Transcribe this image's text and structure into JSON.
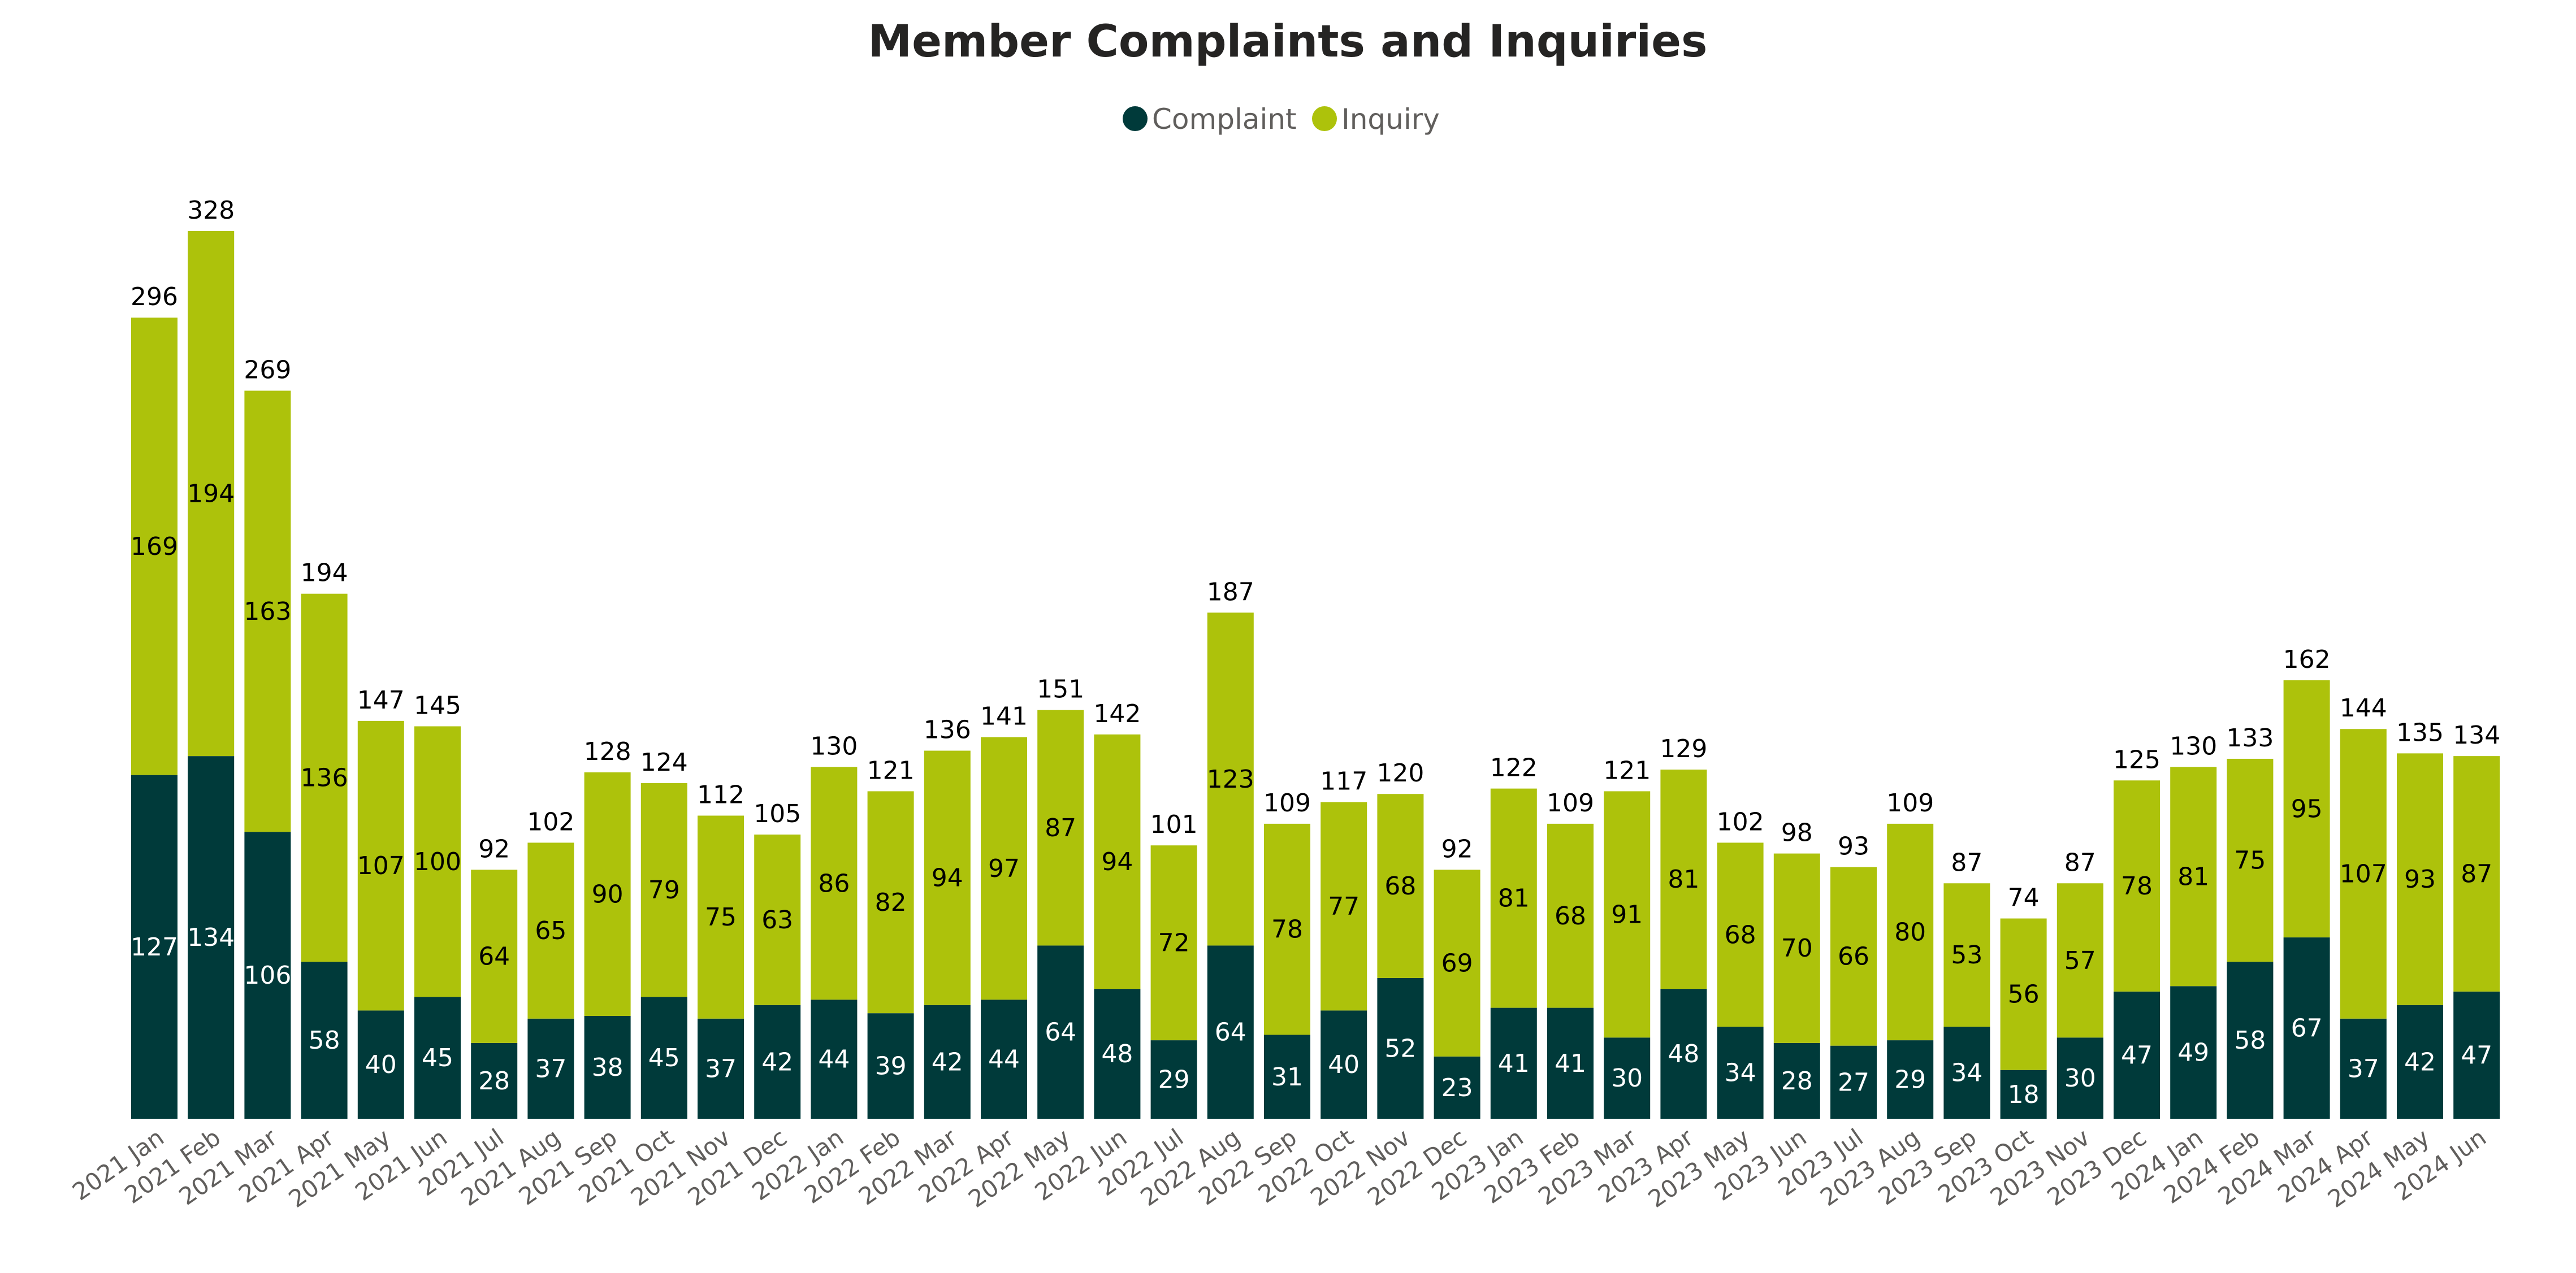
{
  "chart_data": {
    "type": "bar",
    "stacked": true,
    "title": "Member Complaints and Inquiries",
    "xlabel": "",
    "ylabel": "",
    "legend_placement": "top-center",
    "grid": false,
    "ylim": [
      0,
      340
    ],
    "categories": [
      "2021 Jan",
      "2021 Feb",
      "2021 Mar",
      "2021 Apr",
      "2021 May",
      "2021 Jun",
      "2021 Jul",
      "2021 Aug",
      "2021 Sep",
      "2021 Oct",
      "2021 Nov",
      "2021 Dec",
      "2022 Jan",
      "2022 Feb",
      "2022 Mar",
      "2022 Apr",
      "2022 May",
      "2022 Jun",
      "2022 Jul",
      "2022 Aug",
      "2022 Sep",
      "2022 Oct",
      "2022 Nov",
      "2022 Dec",
      "2023 Jan",
      "2023 Feb",
      "2023 Mar",
      "2023 Apr",
      "2023 May",
      "2023 Jun",
      "2023 Jul",
      "2023 Aug",
      "2023 Sep",
      "2023 Oct",
      "2023 Nov",
      "2023 Dec",
      "2024 Jan",
      "2024 Feb",
      "2024 Mar",
      "2024 Apr",
      "2024 May",
      "2024 Jun"
    ],
    "series": [
      {
        "name": "Complaint",
        "color": "#003a3a",
        "values": [
          127,
          134,
          106,
          58,
          40,
          45,
          28,
          37,
          38,
          45,
          37,
          42,
          44,
          39,
          42,
          44,
          64,
          48,
          29,
          64,
          31,
          40,
          52,
          23,
          41,
          41,
          30,
          48,
          34,
          28,
          27,
          29,
          34,
          18,
          30,
          47,
          49,
          58,
          67,
          37,
          42,
          47
        ]
      },
      {
        "name": "Inquiry",
        "color": "#adc20b",
        "values": [
          169,
          194,
          163,
          136,
          107,
          100,
          64,
          65,
          90,
          79,
          75,
          63,
          86,
          82,
          94,
          97,
          87,
          94,
          72,
          123,
          78,
          77,
          68,
          69,
          81,
          68,
          91,
          81,
          68,
          70,
          66,
          80,
          53,
          56,
          57,
          78,
          81,
          75,
          95,
          107,
          93,
          87
        ]
      }
    ],
    "totals": [
      296,
      328,
      269,
      194,
      147,
      145,
      92,
      102,
      128,
      124,
      112,
      105,
      130,
      121,
      136,
      141,
      151,
      142,
      101,
      187,
      109,
      117,
      120,
      92,
      122,
      109,
      121,
      129,
      102,
      98,
      93,
      109,
      87,
      74,
      87,
      125,
      130,
      133,
      162,
      144,
      135,
      134
    ]
  }
}
